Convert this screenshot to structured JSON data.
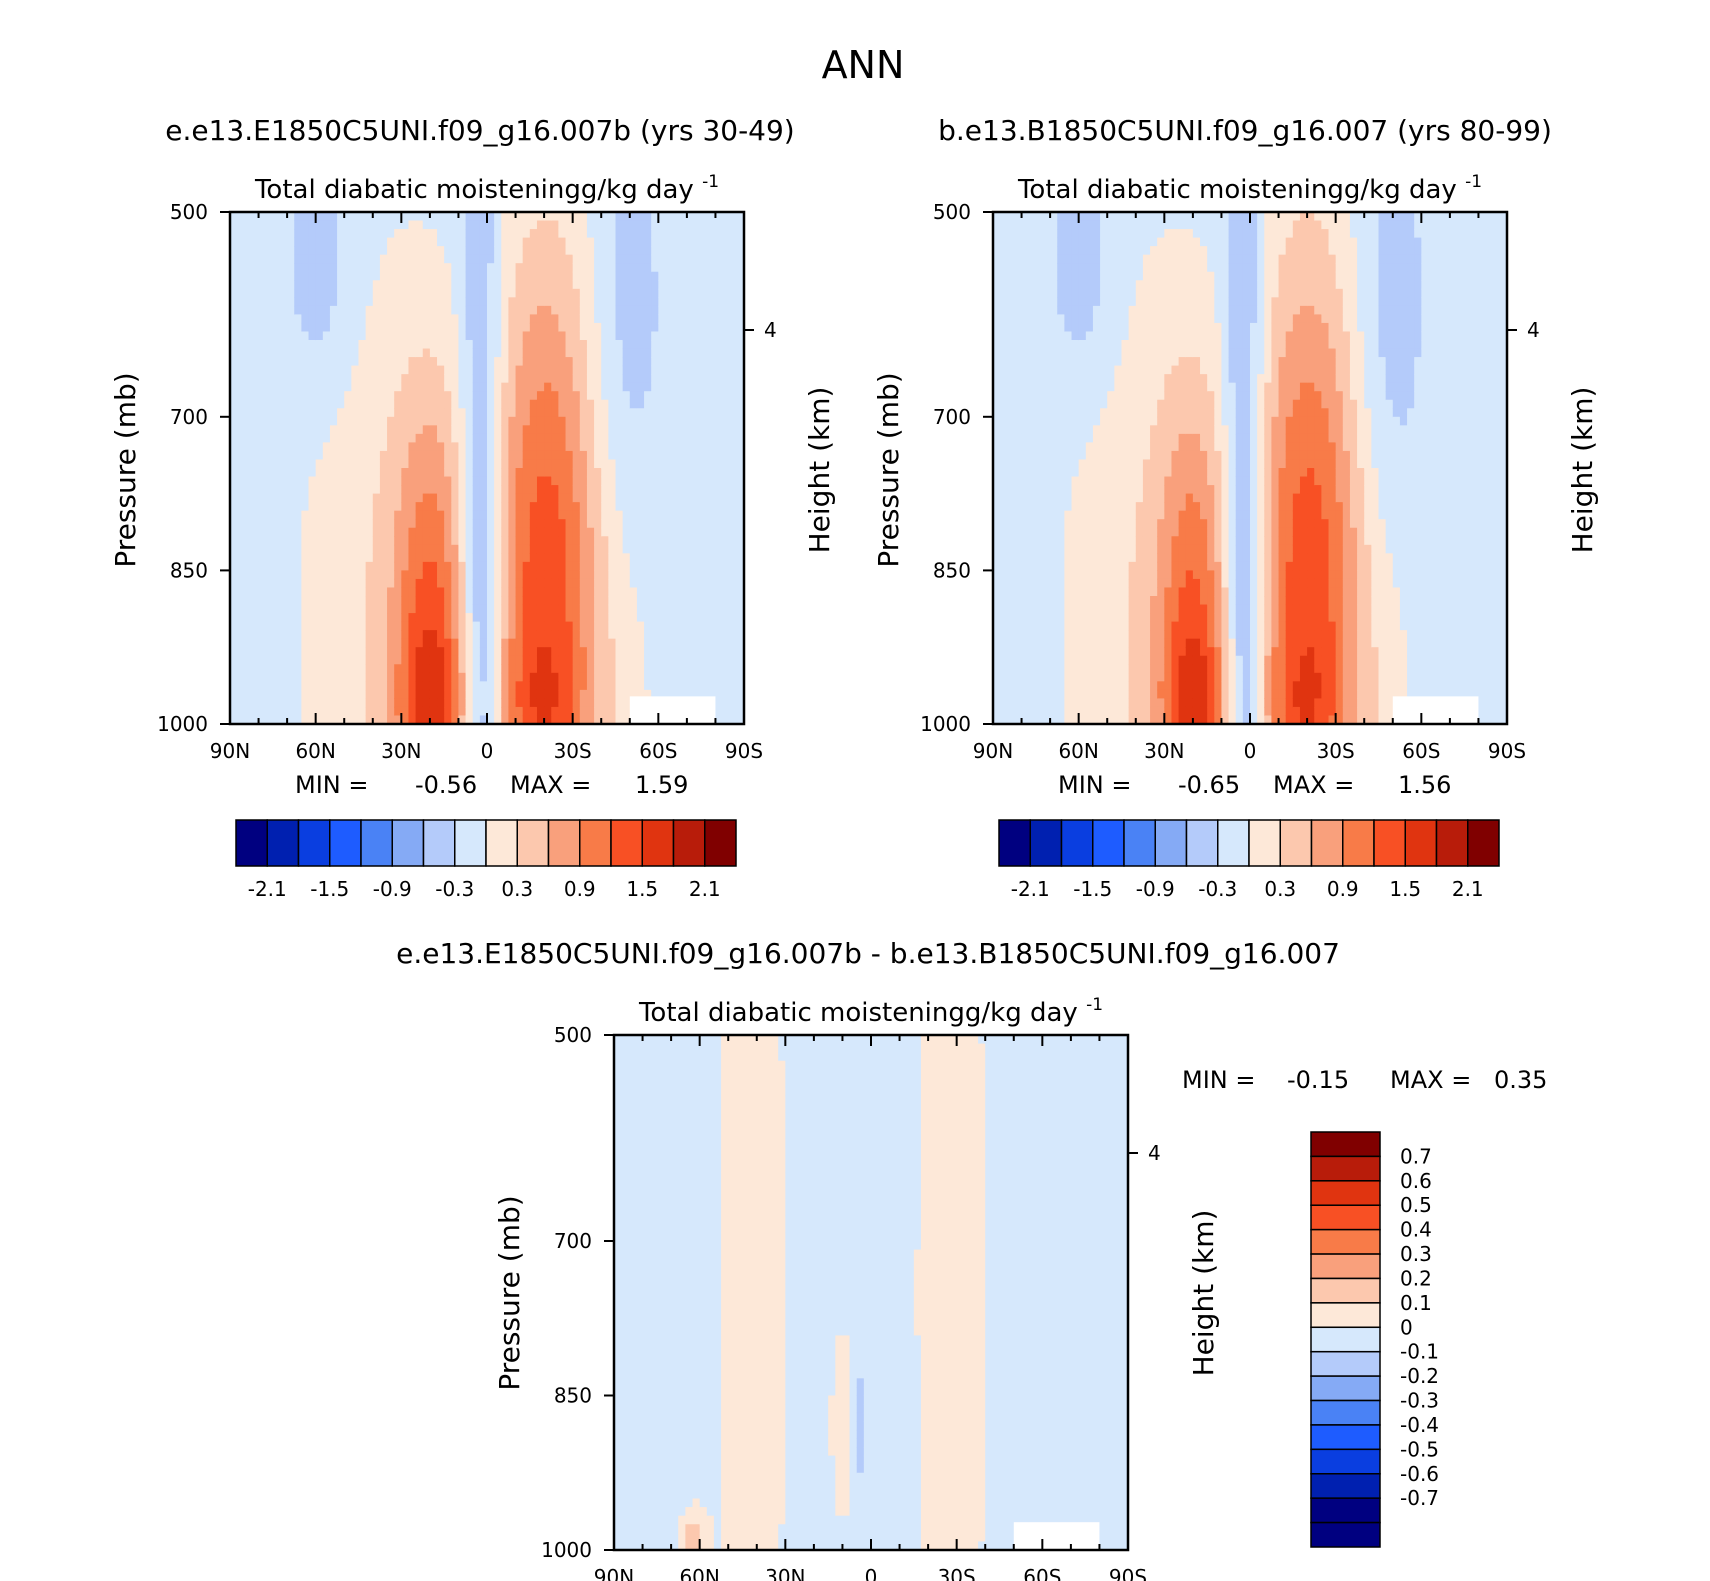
{
  "figure": {
    "title": "ANN"
  },
  "palettes": {
    "full": [
      "#000080",
      "#0020b0",
      "#0a3ee0",
      "#1e5cff",
      "#4a82f5",
      "#85aaf5",
      "#b4cbfa",
      "#d6e8fc",
      "#fde8d8",
      "#fcc8ae",
      "#f9a07c",
      "#f87b48",
      "#f85024",
      "#e03410",
      "#b81c0a",
      "#800000"
    ],
    "diff": [
      "#000080",
      "#0020b0",
      "#0a3ee0",
      "#1e5cff",
      "#4a82f5",
      "#85aaf5",
      "#b4cbfa",
      "#d6e8fc",
      "#fde8d8",
      "#fcc8ae",
      "#f9a07c",
      "#f87b48",
      "#f85024",
      "#e03410",
      "#b81c0a",
      "#800000"
    ]
  },
  "chart_data": [
    {
      "type": "heatmap",
      "case_title": "e.e13.E1850C5UNI.f09_g16.007b (yrs 30-49)",
      "variable_title": "Total diabatic moistening",
      "units_base": "g/kg day",
      "units_exp": "-1",
      "ylabel": "Pressure (mb)",
      "y2label": "Height (km)",
      "x_ticks": [
        "90N",
        "60N",
        "30N",
        "0",
        "30S",
        "60S",
        "90S"
      ],
      "y_ticks": [
        "500",
        "700",
        "850",
        "1000"
      ],
      "y2_ticks": [
        "4"
      ],
      "x_range": [
        90,
        -90
      ],
      "y_range": [
        500,
        1000
      ],
      "min_label": "MIN =",
      "min_value": "-0.56",
      "max_label": "MAX =",
      "max_value": "1.59",
      "colorbar_labels": [
        "-2.1",
        "-1.5",
        "-0.9",
        "-0.3",
        "0.3",
        "0.9",
        "1.5",
        "2.1"
      ],
      "levels": [
        -2.1,
        -1.8,
        -1.5,
        -1.2,
        -0.9,
        -0.6,
        -0.3,
        0,
        0.3,
        0.6,
        0.9,
        1.2,
        1.5,
        1.8,
        2.1
      ],
      "features": [
        {
          "lat": 20,
          "p": 930,
          "slat": 9,
          "sp": 170,
          "amp": 1.2
        },
        {
          "lat": 18,
          "p": 980,
          "slat": 9,
          "sp": 50,
          "amp": 0.5
        },
        {
          "lat": -20,
          "p": 880,
          "slat": 13,
          "sp": 240,
          "amp": 1.25
        },
        {
          "lat": -18,
          "p": 985,
          "slat": 9,
          "sp": 45,
          "amp": 0.3
        },
        {
          "lat": 38,
          "p": 900,
          "slat": 22,
          "sp": 280,
          "amp": 0.45
        },
        {
          "lat": -32,
          "p": 900,
          "slat": 22,
          "sp": 280,
          "amp": 0.4
        },
        {
          "lat": 2,
          "p": 920,
          "slat": 5,
          "sp": 330,
          "amp": -0.9
        },
        {
          "lat": -48,
          "p": 640,
          "slat": 10,
          "sp": 160,
          "amp": -0.4
        },
        {
          "lat": 58,
          "p": 560,
          "slat": 9,
          "sp": 90,
          "amp": -0.35
        }
      ],
      "base_value": -0.2
    },
    {
      "type": "heatmap",
      "case_title": "b.e13.B1850C5UNI.f09_g16.007 (yrs 80-99)",
      "variable_title": "Total diabatic moistening",
      "units_base": "g/kg day",
      "units_exp": "-1",
      "ylabel": "Pressure (mb)",
      "y2label": "Height (km)",
      "x_ticks": [
        "90N",
        "60N",
        "30N",
        "0",
        "30S",
        "60S",
        "90S"
      ],
      "y_ticks": [
        "500",
        "700",
        "850",
        "1000"
      ],
      "y2_ticks": [
        "4"
      ],
      "x_range": [
        90,
        -90
      ],
      "y_range": [
        500,
        1000
      ],
      "min_label": "MIN =",
      "min_value": "-0.65",
      "max_label": "MAX =",
      "max_value": "1.56",
      "colorbar_labels": [
        "-2.1",
        "-1.5",
        "-0.9",
        "-0.3",
        "0.3",
        "0.9",
        "1.5",
        "2.1"
      ],
      "levels": [
        -2.1,
        -1.8,
        -1.5,
        -1.2,
        -0.9,
        -0.6,
        -0.3,
        0,
        0.3,
        0.6,
        0.9,
        1.2,
        1.5,
        1.8,
        2.1
      ],
      "features": [
        {
          "lat": 20,
          "p": 930,
          "slat": 9,
          "sp": 170,
          "amp": 1.15
        },
        {
          "lat": 18,
          "p": 980,
          "slat": 9,
          "sp": 50,
          "amp": 0.5
        },
        {
          "lat": -20,
          "p": 875,
          "slat": 13,
          "sp": 240,
          "amp": 1.25
        },
        {
          "lat": -18,
          "p": 985,
          "slat": 9,
          "sp": 45,
          "amp": 0.3
        },
        {
          "lat": 38,
          "p": 900,
          "slat": 22,
          "sp": 280,
          "amp": 0.45
        },
        {
          "lat": -32,
          "p": 900,
          "slat": 22,
          "sp": 280,
          "amp": 0.4
        },
        {
          "lat": 2,
          "p": 920,
          "slat": 5,
          "sp": 330,
          "amp": -0.95
        },
        {
          "lat": -48,
          "p": 640,
          "slat": 10,
          "sp": 160,
          "amp": -0.42
        },
        {
          "lat": 58,
          "p": 560,
          "slat": 9,
          "sp": 90,
          "amp": -0.35
        }
      ],
      "base_value": -0.2
    },
    {
      "type": "heatmap",
      "case_title": "e.e13.E1850C5UNI.f09_g16.007b - b.e13.B1850C5UNI.f09_g16.007",
      "variable_title": "Total diabatic moistening",
      "units_base": "g/kg day",
      "units_exp": "-1",
      "ylabel": "Pressure (mb)",
      "y2label": "Height (km)",
      "x_ticks": [
        "90N",
        "60N",
        "30N",
        "0",
        "30S",
        "60S",
        "90S"
      ],
      "y_ticks": [
        "500",
        "700",
        "850",
        "1000"
      ],
      "y2_ticks": [
        "4"
      ],
      "x_range": [
        90,
        -90
      ],
      "y_range": [
        500,
        1000
      ],
      "min_label": "MIN =",
      "min_value": "-0.15",
      "max_label": "MAX =",
      "max_value": "0.35",
      "colorbar_labels": [
        "0.7",
        "0.6",
        "0.5",
        "0.4",
        "0.3",
        "0.2",
        "0.1",
        "0",
        "-0.1",
        "-0.2",
        "-0.3",
        "-0.4",
        "-0.5",
        "-0.6",
        "-0.7"
      ],
      "levels": [
        -0.7,
        -0.6,
        -0.5,
        -0.4,
        -0.3,
        -0.2,
        -0.1,
        0,
        0.1,
        0.2,
        0.3,
        0.4,
        0.5,
        0.6,
        0.7
      ],
      "features": [
        {
          "lat": 42,
          "p": 750,
          "slat": 9,
          "sp": 500,
          "amp": 0.09
        },
        {
          "lat": -28,
          "p": 750,
          "slat": 10,
          "sp": 500,
          "amp": 0.08
        },
        {
          "lat": 10,
          "p": 880,
          "slat": 2.5,
          "sp": 60,
          "amp": 0.14
        },
        {
          "lat": 4,
          "p": 880,
          "slat": 2,
          "sp": 40,
          "amp": -0.12
        },
        {
          "lat": 62,
          "p": 990,
          "slat": 3,
          "sp": 20,
          "amp": 0.2
        }
      ],
      "base_value": -0.04
    }
  ]
}
